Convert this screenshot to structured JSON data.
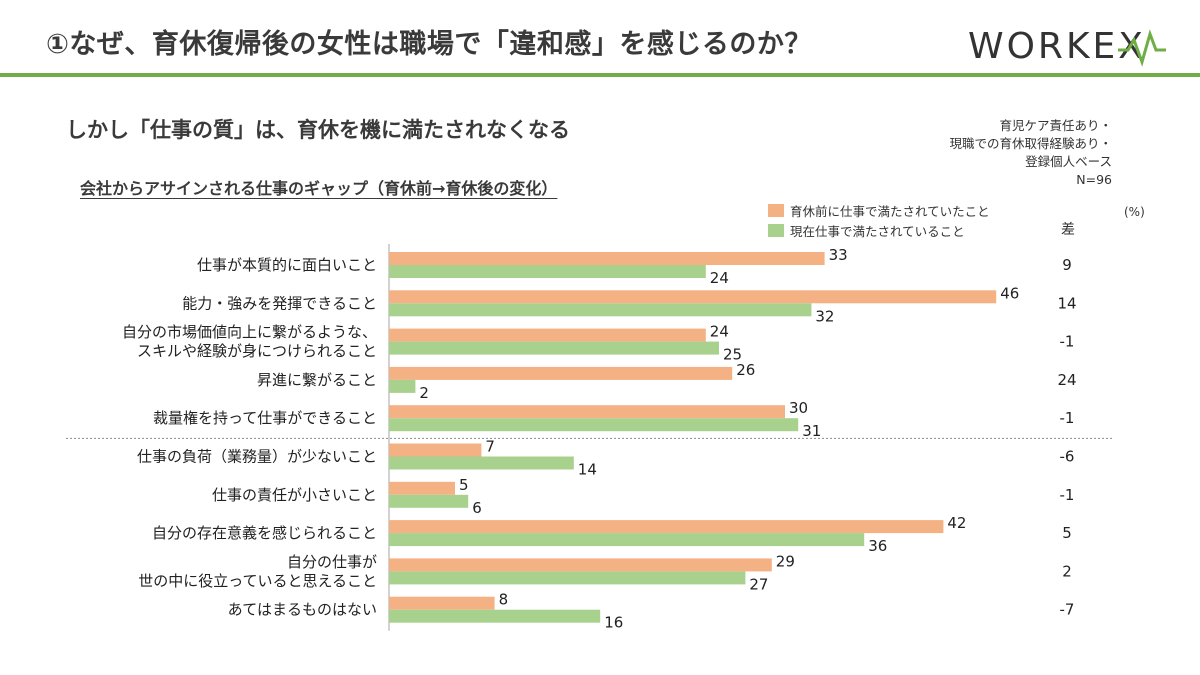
{
  "header": {
    "title": "①なぜ、育休復帰後の女性は職場で「違和感」を感じるのか？",
    "logo_text": "WORKEX"
  },
  "subtitle": "しかし「仕事の質」は、育休を機に満たされなくなる",
  "base_note": [
    "育児ケア責任あり・",
    "現職での育休取得経験あり・",
    "登録個人ベース",
    "N=96"
  ],
  "unit_label": "(%)",
  "diff_header": "差",
  "colors": {
    "before": "#f4b183",
    "after": "#a9d18e",
    "accent": "#70ad47"
  },
  "chart_data": {
    "type": "bar",
    "orientation": "horizontal",
    "title": "会社からアサインされる仕事のギャップ（育休前→育休後の変化）",
    "categories": [
      "仕事が本質的に面白いこと",
      "能力・強みを発揮できること",
      "自分の市場価値向上に繋がるような、\nスキルや経験が身につけられること",
      "昇進に繋がること",
      "裁量権を持って仕事ができること",
      "仕事の負荷（業務量）が少ないこと",
      "仕事の責任が小さいこと",
      "自分の存在意義を感じられること",
      "自分の仕事が\n世の中に役立っていると思えること",
      "あてはまるものはない"
    ],
    "series": [
      {
        "name": "育休前に仕事で満たされていたこと",
        "values": [
          33,
          46,
          24,
          26,
          30,
          7,
          5,
          42,
          29,
          8
        ]
      },
      {
        "name": "現在仕事で満たされていること",
        "values": [
          24,
          32,
          25,
          2,
          31,
          14,
          6,
          36,
          27,
          16
        ]
      }
    ],
    "diff": [
      "9",
      "14",
      "-1",
      "24",
      "-1",
      "-6",
      "-1",
      "5",
      "2",
      "-7"
    ],
    "separator_after_index": 4,
    "xlim": [
      0,
      50
    ],
    "unit": "%"
  }
}
